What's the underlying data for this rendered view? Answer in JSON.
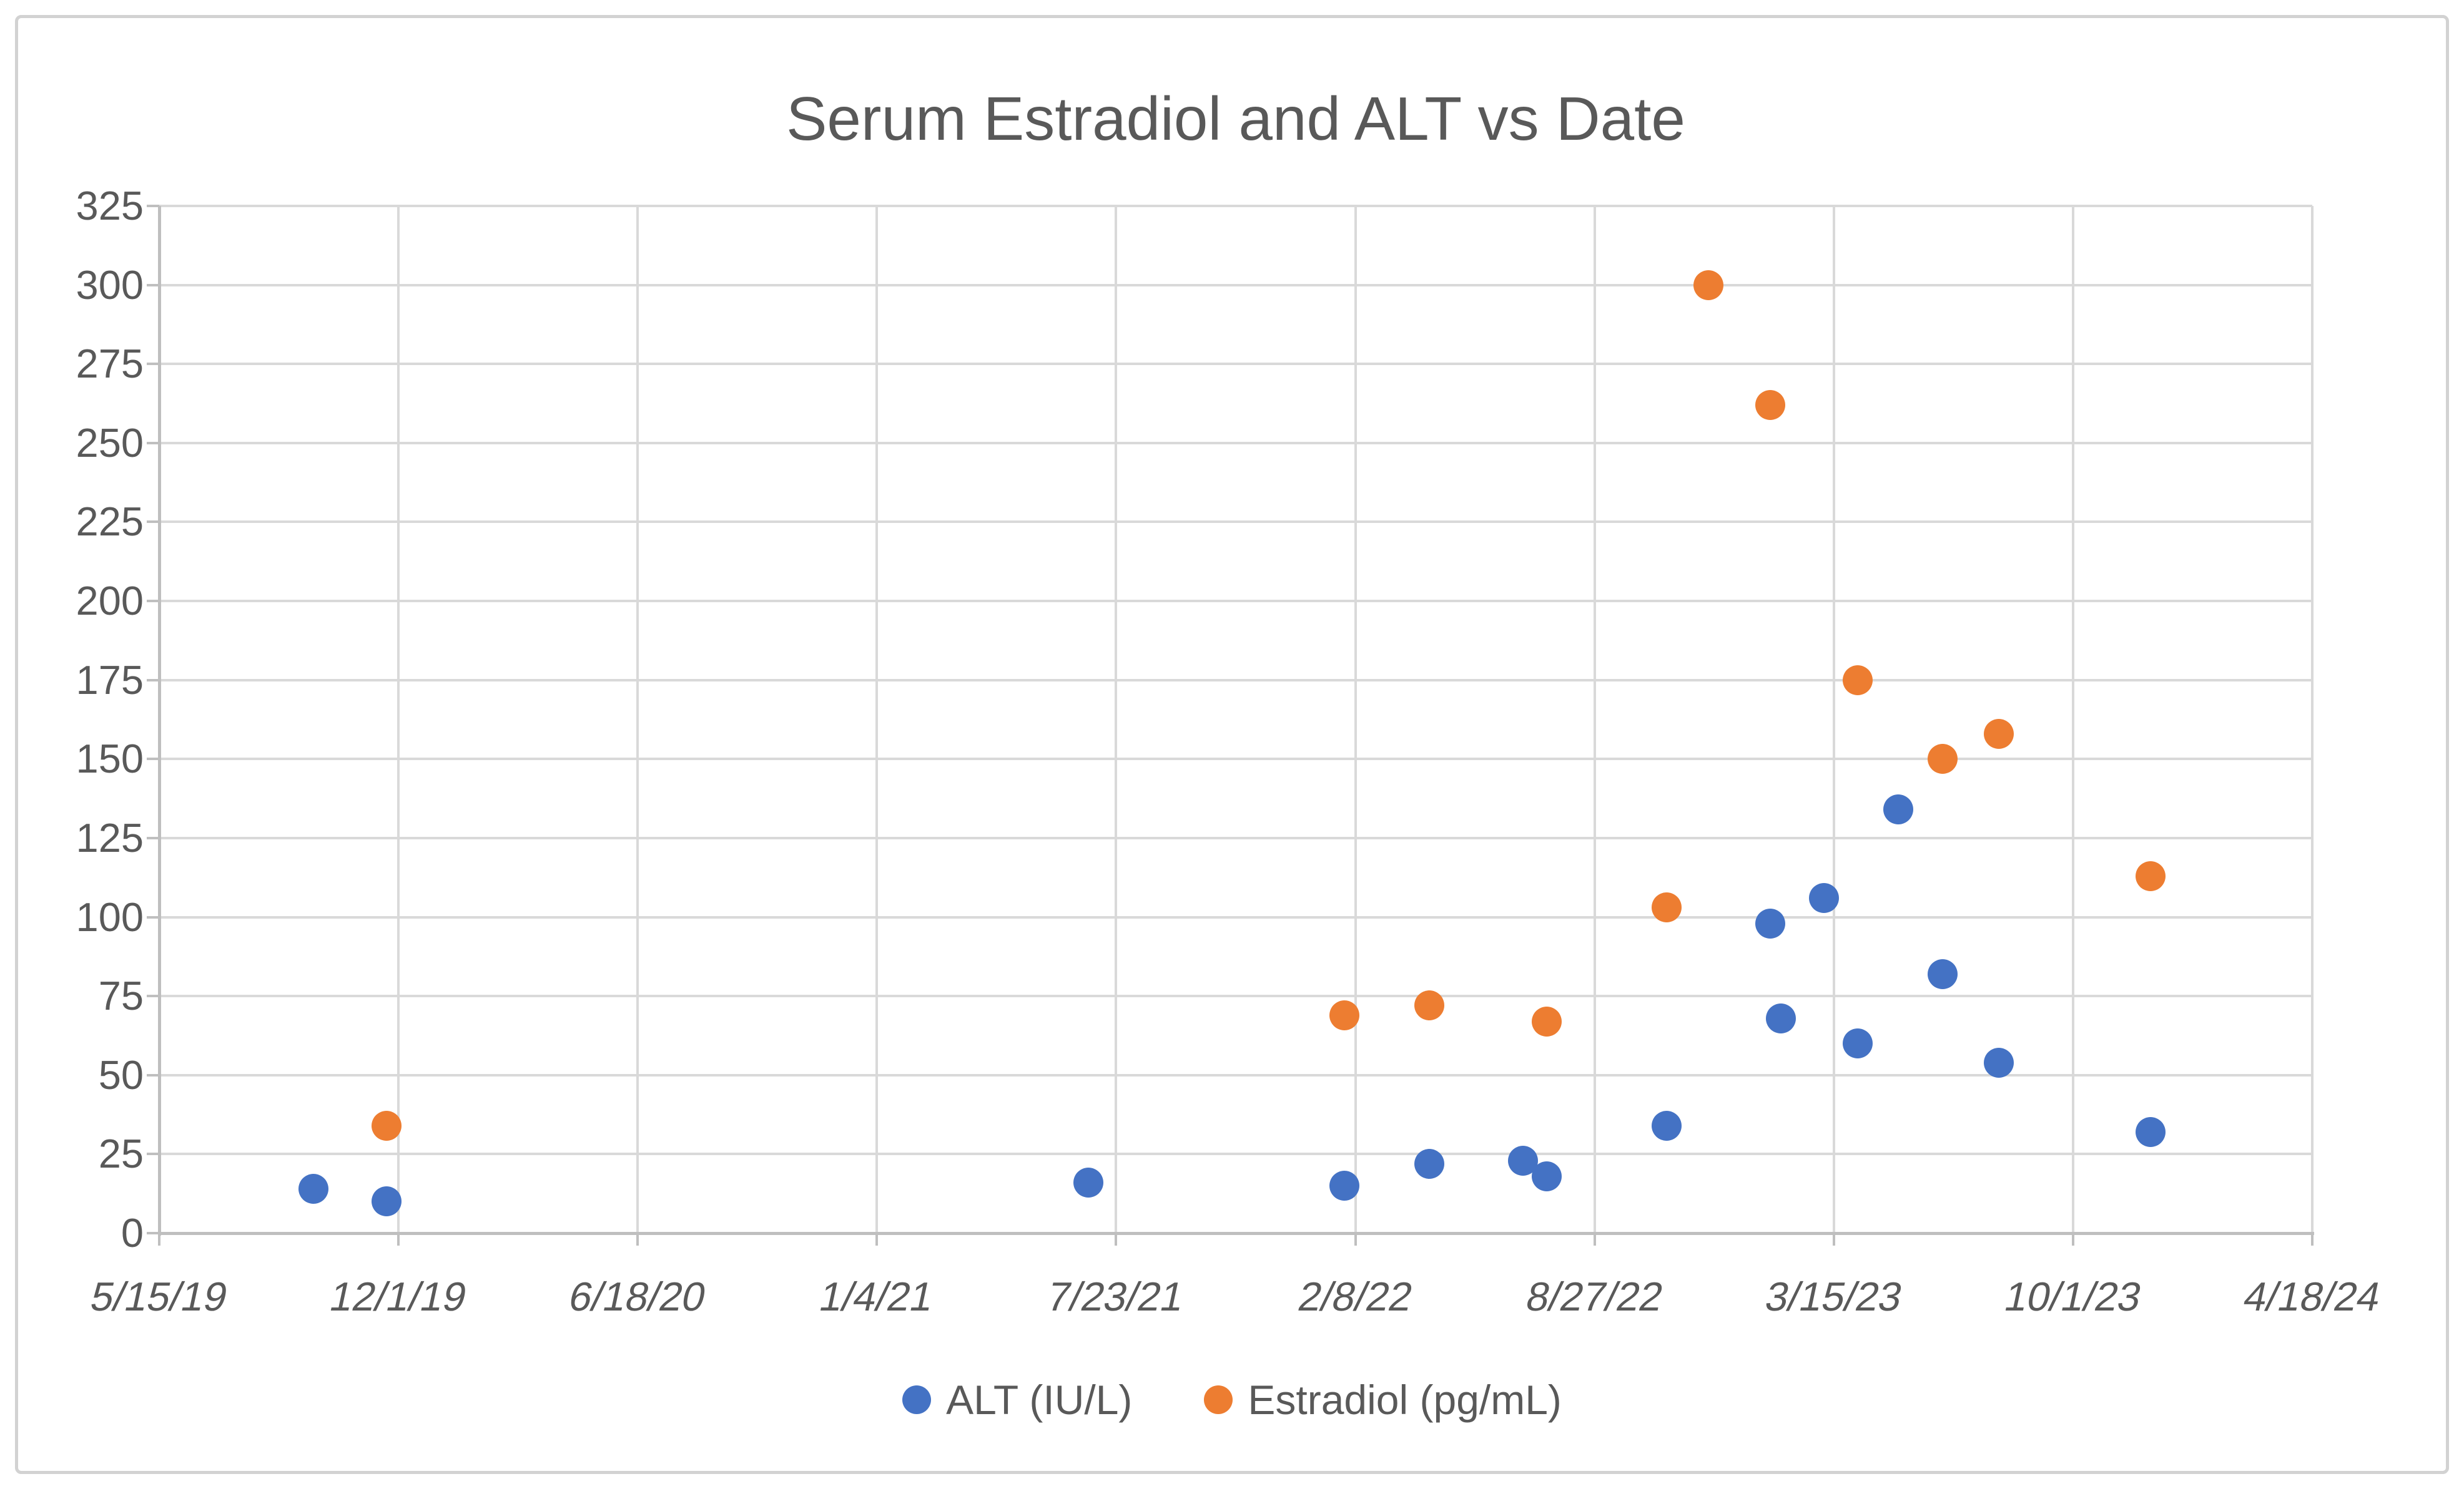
{
  "chart": {
    "title": "Serum Estradiol and ALT vs Date"
  },
  "colors": {
    "alt_series": "#4472C4",
    "estradiol_series": "#ED7D31",
    "gridline": "#D9D9D9",
    "axis_line": "#BFBFBF",
    "text": "#595959",
    "frame_border": "#D2D2D2"
  },
  "legend": {
    "position": "bottom",
    "items": [
      {
        "label": "ALT (IU/L)",
        "color": "#4472C4"
      },
      {
        "label": "Estradiol (pg/mL)",
        "color": "#ED7D31"
      }
    ]
  },
  "chart_data": {
    "type": "scatter",
    "title": "Serum Estradiol and ALT vs Date",
    "xlabel": "",
    "ylabel": "",
    "grid": true,
    "legend_position": "bottom",
    "x_axis": {
      "type": "date",
      "start": "2019-05-15",
      "end": "2024-04-18",
      "tick_interval_days": 200,
      "tick_labels": [
        "5/15/19",
        "12/1/19",
        "6/18/20",
        "1/4/21",
        "7/23/21",
        "2/8/22",
        "8/27/22",
        "3/15/23",
        "10/1/23",
        "4/18/24"
      ]
    },
    "y_axis": {
      "min": 0,
      "max": 325,
      "step": 25
    },
    "series": [
      {
        "id": "alt",
        "name": "ALT (IU/L)",
        "color": "#4472C4",
        "points": [
          {
            "date": "2019-09-21",
            "value": 14
          },
          {
            "date": "2019-11-21",
            "value": 10
          },
          {
            "date": "2021-06-30",
            "value": 16
          },
          {
            "date": "2022-01-30",
            "value": 15
          },
          {
            "date": "2022-04-11",
            "value": 22
          },
          {
            "date": "2022-06-28",
            "value": 23
          },
          {
            "date": "2022-07-18",
            "value": 18
          },
          {
            "date": "2022-10-26",
            "value": 34
          },
          {
            "date": "2023-01-21",
            "value": 98
          },
          {
            "date": "2023-01-30",
            "value": 68
          },
          {
            "date": "2023-03-07",
            "value": 106
          },
          {
            "date": "2023-04-04",
            "value": 60
          },
          {
            "date": "2023-05-08",
            "value": 134
          },
          {
            "date": "2023-06-14",
            "value": 82
          },
          {
            "date": "2023-07-31",
            "value": 54
          },
          {
            "date": "2023-12-05",
            "value": 32
          }
        ]
      },
      {
        "id": "estradiol",
        "name": "Estradiol (pg/mL)",
        "color": "#ED7D31",
        "points": [
          {
            "date": "2019-11-21",
            "value": 34
          },
          {
            "date": "2022-01-30",
            "value": 69
          },
          {
            "date": "2022-04-11",
            "value": 72
          },
          {
            "date": "2022-07-18",
            "value": 67
          },
          {
            "date": "2022-10-26",
            "value": 103
          },
          {
            "date": "2022-11-30",
            "value": 300
          },
          {
            "date": "2023-01-21",
            "value": 262
          },
          {
            "date": "2023-04-04",
            "value": 175
          },
          {
            "date": "2023-06-14",
            "value": 150
          },
          {
            "date": "2023-07-31",
            "value": 158
          },
          {
            "date": "2023-12-05",
            "value": 113
          }
        ]
      }
    ]
  }
}
